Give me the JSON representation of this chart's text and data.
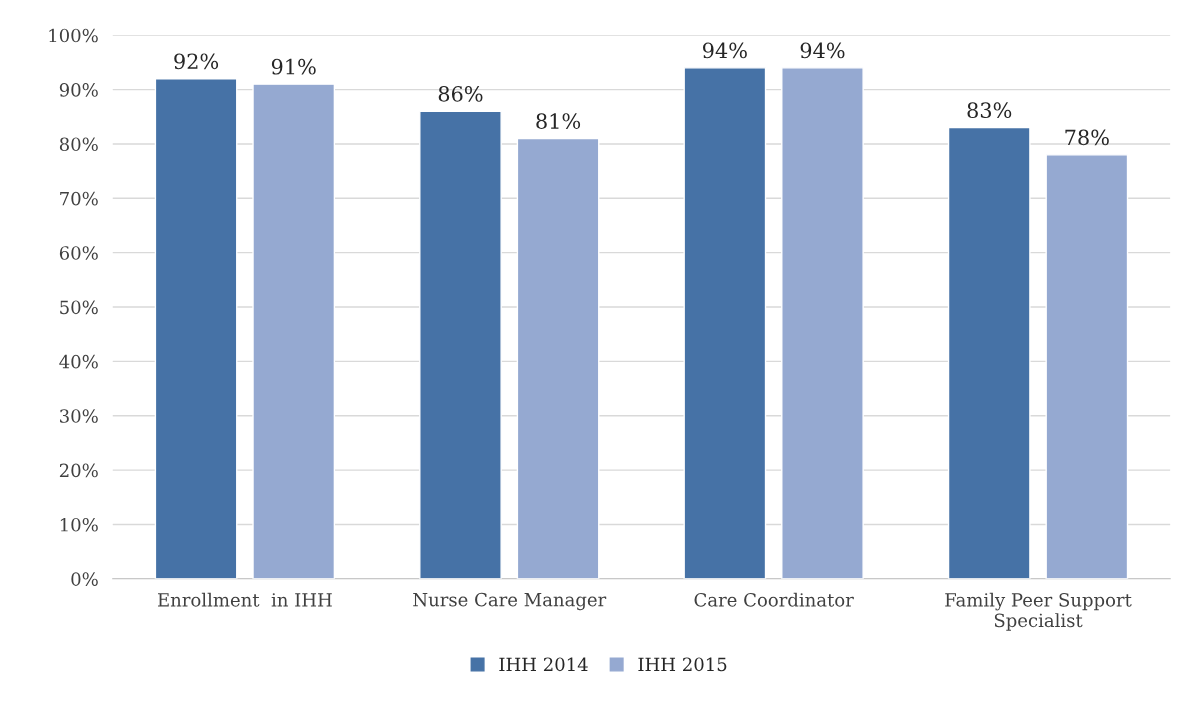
{
  "chart_data": {
    "type": "bar",
    "categories": [
      "Enrollment  in IHH",
      "Nurse Care Manager",
      "Care Coordinator",
      "Family Peer Support\nSpecialist"
    ],
    "series": [
      {
        "name": "IHH 2014",
        "color": "#4672a6",
        "values": [
          92,
          86,
          94,
          83
        ],
        "value_labels": [
          "92%",
          "86%",
          "94%",
          "83%"
        ]
      },
      {
        "name": "IHH 2015",
        "color": "#95a9d1",
        "values": [
          91,
          81,
          94,
          78
        ],
        "value_labels": [
          "91%",
          "81%",
          "94%",
          "78%"
        ]
      }
    ],
    "ylim": [
      0,
      100
    ],
    "yticks": [
      {
        "value": 0,
        "label": "0%"
      },
      {
        "value": 10,
        "label": "10%"
      },
      {
        "value": 20,
        "label": "20%"
      },
      {
        "value": 30,
        "label": "30%"
      },
      {
        "value": 40,
        "label": "40%"
      },
      {
        "value": 50,
        "label": "50%"
      },
      {
        "value": 60,
        "label": "60%"
      },
      {
        "value": 70,
        "label": "70%"
      },
      {
        "value": 80,
        "label": "80%"
      },
      {
        "value": 90,
        "label": "90%"
      },
      {
        "value": 100,
        "label": "100%"
      }
    ],
    "grid": "y",
    "legend": "bottom"
  }
}
